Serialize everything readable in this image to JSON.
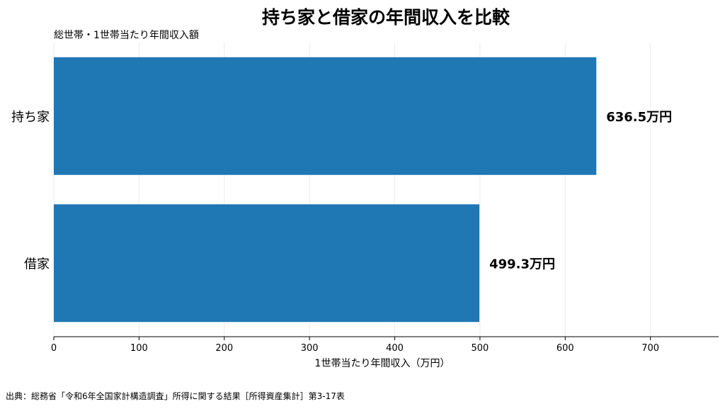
{
  "chart_data": {
    "type": "bar",
    "orientation": "horizontal",
    "title": "持ち家と借家の年間収入を比較",
    "subtitle": "総世帯・1世帯当たり年間収入額",
    "categories": [
      "持ち家",
      "借家"
    ],
    "values": [
      636.5,
      499.3
    ],
    "value_labels": [
      "636.5万円",
      "499.3万円"
    ],
    "xlabel": "1世帯当たり年間収入（万円）",
    "ylabel": "",
    "xlim": [
      0,
      780
    ],
    "xticks": [
      0,
      100,
      200,
      300,
      400,
      500,
      600,
      700
    ],
    "grid": "vertical",
    "bar_color": "#1f77b4",
    "source": "出典：総務省「令和6年全国家計構造調査」所得に関する結果［所得資産集計］第3-17表"
  }
}
